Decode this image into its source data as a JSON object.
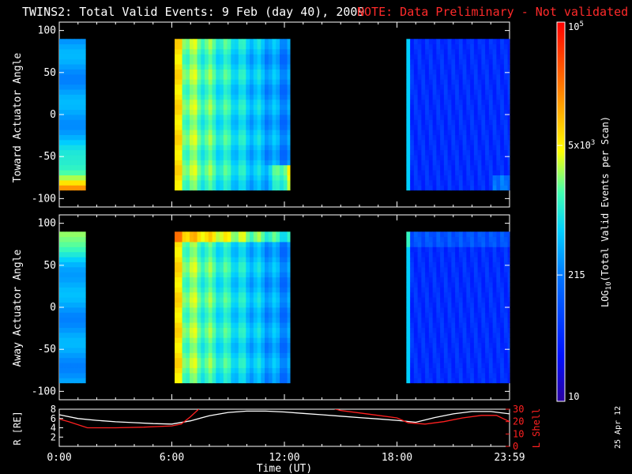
{
  "title": "TWINS2: Total Valid Events:  9 Feb (day  40), 2009",
  "note": "NOTE: Data Preliminary - Not validated",
  "print_date": "25 Apr 12",
  "colors": {
    "note": "#ff2a2a",
    "background": "#000000",
    "red_series": "#ff2020",
    "white_series": "#ffffff"
  },
  "chart_data": [
    {
      "type": "heatmap",
      "ylabel": "Toward Actuator Angle",
      "ylim": [
        -110,
        110
      ],
      "yticks": [
        "100",
        "50",
        "0",
        "-50",
        "-100"
      ],
      "x_range_hours": [
        0,
        24
      ],
      "data_intervals_hours": [
        [
          0.0,
          1.4
        ],
        [
          6.15,
          12.3
        ],
        [
          18.5,
          24.0
        ]
      ],
      "description_level": "high (orange/red) near -90 deg at start and 11-12 UT; yellow-cyan 6-10 UT; blue 18.5-24 UT"
    },
    {
      "type": "heatmap",
      "ylabel": "Away Actuator Angle",
      "ylim": [
        -110,
        110
      ],
      "yticks": [
        "100",
        "50",
        "0",
        "-50",
        "-100"
      ],
      "x_range_hours": [
        0,
        24
      ],
      "data_intervals_hours": [
        [
          0.0,
          1.4
        ],
        [
          6.15,
          12.3
        ],
        [
          18.5,
          24.0
        ]
      ]
    },
    {
      "type": "line",
      "ylabel_left": "R [RE]",
      "ylabel_right": "L Shell",
      "xlabel": "Time (UT)",
      "xticks": [
        "0:00",
        "6:00",
        "12:00",
        "18:00",
        "23:59"
      ],
      "ylim_left": [
        0,
        8
      ],
      "yticks_left": [
        "8",
        "6",
        "4",
        "2"
      ],
      "ylim_right": [
        0,
        30
      ],
      "yticks_right": [
        "30",
        "20",
        "10",
        "0"
      ],
      "series": [
        {
          "axis": "left",
          "color": "#ffffff",
          "x": [
            0,
            1,
            2,
            3,
            4,
            5,
            6,
            7,
            8,
            9,
            10,
            11,
            12,
            13,
            14,
            15,
            16,
            17,
            18,
            19,
            20,
            21,
            22,
            23,
            24
          ],
          "y": [
            6.8,
            6.0,
            5.6,
            5.3,
            5.1,
            4.9,
            4.8,
            5.5,
            6.6,
            7.3,
            7.6,
            7.6,
            7.4,
            7.1,
            6.8,
            6.5,
            6.2,
            5.9,
            5.6,
            5.2,
            6.2,
            7.0,
            7.5,
            7.5,
            7.0
          ]
        },
        {
          "axis": "right",
          "color": "#ff2020",
          "x": [
            0,
            0.5,
            1.5,
            3,
            4.5,
            6,
            6.5,
            7.0,
            7.5,
            14.5,
            15,
            16,
            17,
            18,
            18.6,
            19.5,
            20.5,
            21.5,
            22.5,
            23.3,
            24
          ],
          "y": [
            22,
            20,
            15,
            15,
            15.5,
            16.5,
            18,
            24,
            31,
            31,
            29,
            27,
            25,
            23,
            19,
            18,
            20,
            23,
            25,
            25,
            20
          ]
        }
      ]
    }
  ],
  "colorbar": {
    "label": "LOG10(Total Valid Events per Scan)",
    "label_base": "LOG",
    "label_sub": "10",
    "label_rest": "(Total Valid Events per Scan)",
    "scale": "log",
    "range": [
      10,
      100000
    ],
    "ticks": [
      {
        "value": 100000,
        "base": "10",
        "exp": "5"
      },
      {
        "value": 5000,
        "base": "5x10",
        "exp": "3"
      },
      {
        "value": 215,
        "base": "215",
        "exp": ""
      },
      {
        "value": 10,
        "base": "10",
        "exp": ""
      }
    ]
  }
}
